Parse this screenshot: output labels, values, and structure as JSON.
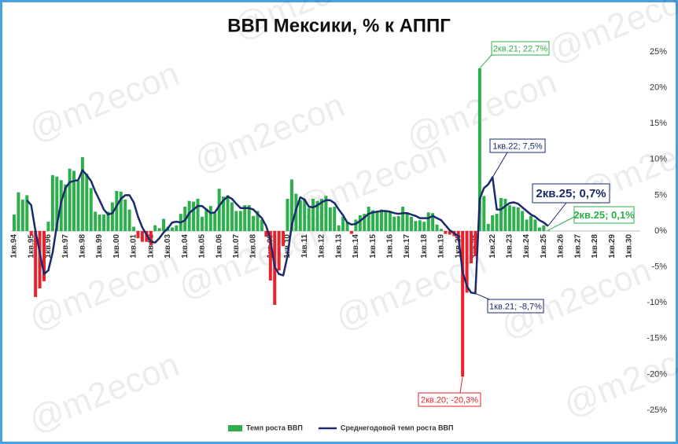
{
  "chart_data": {
    "type": "bar",
    "title": "ВВП Мексики, % к АППГ",
    "watermark": "@m2econ",
    "categories": [
      "1кв.94",
      null,
      null,
      null,
      "1кв.95",
      null,
      null,
      null,
      "1кв.96",
      null,
      null,
      null,
      "1кв.97",
      null,
      null,
      null,
      "1кв.98",
      null,
      null,
      null,
      "1кв.99",
      null,
      null,
      null,
      "1кв.00",
      null,
      null,
      null,
      "1кв.01",
      null,
      null,
      null,
      "1кв.02",
      null,
      null,
      null,
      "1кв.03",
      null,
      null,
      null,
      "1кв.04",
      null,
      null,
      null,
      "1кв.05",
      null,
      null,
      null,
      "1кв.06",
      null,
      null,
      null,
      "1кв.07",
      null,
      null,
      null,
      "1кв.08",
      null,
      null,
      null,
      "1кв.09",
      null,
      null,
      null,
      "1кв.10",
      null,
      null,
      null,
      "1кв.11",
      null,
      null,
      null,
      "1кв.12",
      null,
      null,
      null,
      "1кв.13",
      null,
      null,
      null,
      "1кв.14",
      null,
      null,
      null,
      "1кв.15",
      null,
      null,
      null,
      "1кв.16",
      null,
      null,
      null,
      "1кв.17",
      null,
      null,
      null,
      "1кв.18",
      null,
      null,
      null,
      "1кв.19",
      null,
      null,
      null,
      "1кв.20",
      null,
      null,
      null,
      "1кв.21",
      null,
      null,
      null,
      "1кв.22",
      null,
      null,
      null,
      "1кв.23",
      null,
      null,
      null,
      "1кв.24",
      null,
      null,
      null,
      "1кв.25",
      null,
      null,
      null,
      "1кв.26",
      null,
      null,
      null,
      "1кв.27",
      null,
      null,
      null,
      "1кв.28",
      null,
      null,
      null,
      "1кв.29",
      null,
      null,
      null,
      "1кв.30",
      null,
      null,
      null
    ],
    "series": [
      {
        "name": "Темп роста ВВП",
        "type": "bar",
        "color": "#2db04b",
        "negative_color": "#e8212a",
        "values": [
          2.3,
          5.4,
          4.4,
          5.0,
          -0.6,
          -9.2,
          -8.0,
          -7.0,
          1.3,
          7.8,
          7.6,
          7.1,
          6.5,
          8.7,
          8.4,
          7.0,
          10.3,
          8.0,
          6.0,
          2.7,
          2.3,
          2.3,
          2.7,
          4.0,
          5.6,
          5.5,
          4.4,
          3.0,
          0.6,
          -1.0,
          -1.5,
          -1.5,
          -2.0,
          0.8,
          0.4,
          1.7,
          0.6,
          0.5,
          0.8,
          2.4,
          3.4,
          4.2,
          4.1,
          4.5,
          2.0,
          3.1,
          3.5,
          2.5,
          5.9,
          4.8,
          5.0,
          4.0,
          2.8,
          2.8,
          3.6,
          3.6,
          2.1,
          2.8,
          1.6,
          -0.8,
          -6.9,
          -10.3,
          -5.5,
          -2.1,
          4.5,
          7.2,
          5.2,
          4.3,
          4.4,
          3.2,
          4.5,
          4.2,
          4.5,
          4.9,
          3.3,
          3.4,
          0.8,
          2.0,
          1.3,
          -0.4,
          1.6,
          2.2,
          2.4,
          3.4,
          2.9,
          2.7,
          3.0,
          2.7,
          2.6,
          2.0,
          2.1,
          3.4,
          2.5,
          2.0,
          1.4,
          1.5,
          1.3,
          2.6,
          2.5,
          0.9,
          0.3,
          -0.4,
          -0.5,
          -0.7,
          -1.2,
          -20.3,
          -8.6,
          -4.5,
          -3.5,
          22.7,
          4.9,
          1.0,
          2.2,
          2.4,
          4.6,
          4.5,
          3.6,
          3.4,
          3.3,
          2.8,
          1.6,
          2.1,
          1.6,
          0.5,
          0.8,
          0.1,
          null,
          null,
          null,
          null,
          null,
          null,
          null,
          null,
          null,
          null,
          null,
          null,
          null,
          null,
          null,
          null,
          null,
          null,
          null,
          null,
          null,
          null
        ]
      },
      {
        "name": "Среднегодовой темп роста ВВП",
        "type": "line",
        "color": "#1a2a6c",
        "values": [
          null,
          null,
          null,
          4.3,
          3.6,
          0.0,
          -3.0,
          -6.0,
          -5.5,
          -3.0,
          0.8,
          4.0,
          6.0,
          6.8,
          7.0,
          7.1,
          8.5,
          7.8,
          7.0,
          5.5,
          4.3,
          3.0,
          2.3,
          2.5,
          3.5,
          4.5,
          5.0,
          5.0,
          4.0,
          2.0,
          0.5,
          -0.5,
          -1.5,
          -1.6,
          -1.0,
          -0.2,
          0.4,
          1.2,
          1.3,
          1.2,
          1.5,
          2.5,
          3.0,
          3.5,
          3.5,
          3.0,
          2.5,
          2.6,
          3.5,
          4.3,
          4.8,
          4.5,
          3.8,
          3.2,
          3.2,
          3.2,
          3.0,
          2.4,
          1.8,
          0.7,
          -1.2,
          -5.0,
          -6.0,
          -6.2,
          -3.5,
          0.8,
          3.0,
          4.7,
          4.4,
          3.4,
          3.3,
          3.6,
          4.0,
          4.3,
          4.3,
          3.9,
          3.0,
          2.2,
          1.2,
          0.9,
          1.0,
          1.4,
          1.9,
          2.4,
          2.6,
          2.7,
          2.8,
          2.8,
          2.7,
          2.5,
          2.4,
          2.5,
          2.5,
          2.3,
          2.1,
          1.8,
          1.8,
          1.8,
          2.1,
          1.8,
          1.5,
          0.8,
          0.1,
          -0.3,
          -0.7,
          -5.7,
          -7.7,
          -8.6,
          -8.7,
          4.5,
          6.0,
          6.5,
          7.5,
          3.0,
          3.0,
          3.5,
          3.9,
          4.0,
          3.8,
          3.3,
          2.8,
          2.3,
          2.0,
          1.5,
          1.2,
          0.7,
          null,
          null,
          null,
          null,
          null,
          null,
          null,
          null,
          null,
          null,
          null,
          null,
          null,
          null,
          null,
          null,
          null,
          null,
          null,
          null,
          null,
          null
        ]
      }
    ],
    "ylim": [
      -25,
      25
    ],
    "yticks": [
      {
        "value": -25,
        "label": "-25%"
      },
      {
        "value": -20,
        "label": "-20%"
      },
      {
        "value": -15,
        "label": "-15%"
      },
      {
        "value": -10,
        "label": "-10%"
      },
      {
        "value": -5,
        "label": "-5%"
      },
      {
        "value": 0,
        "label": "0%"
      },
      {
        "value": 5,
        "label": "5%"
      },
      {
        "value": 10,
        "label": "10%"
      },
      {
        "value": 15,
        "label": "15%"
      },
      {
        "value": 20,
        "label": "20%"
      },
      {
        "value": 25,
        "label": "25%"
      }
    ],
    "grid": false,
    "legend": "bottom",
    "annotations": [
      "2кв.21; 22,7%",
      "1кв.22; 7,5%",
      "2кв.25; 0,7%",
      "2кв.25; 0,1%",
      "1кв.21; -8,7%",
      "2кв.20; -20,3%"
    ]
  }
}
